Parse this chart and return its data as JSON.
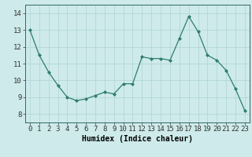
{
  "x": [
    0,
    1,
    2,
    3,
    4,
    5,
    6,
    7,
    8,
    9,
    10,
    11,
    12,
    13,
    14,
    15,
    16,
    17,
    18,
    19,
    20,
    21,
    22,
    23
  ],
  "y": [
    13.0,
    11.5,
    10.5,
    9.7,
    9.0,
    8.8,
    8.9,
    9.1,
    9.3,
    9.2,
    9.8,
    9.8,
    11.4,
    11.3,
    11.3,
    11.2,
    12.5,
    13.8,
    12.9,
    11.5,
    11.2,
    10.6,
    9.5,
    8.2
  ],
  "line_color": "#2e7d6e",
  "marker_color": "#2e7d6e",
  "bg_color": "#ceeaea",
  "grid_color": "#aed4d4",
  "xlabel": "Humidex (Indice chaleur)",
  "xlim": [
    -0.5,
    23.5
  ],
  "ylim": [
    7.5,
    14.5
  ],
  "yticks": [
    8,
    9,
    10,
    11,
    12,
    13,
    14
  ],
  "xticks": [
    0,
    1,
    2,
    3,
    4,
    5,
    6,
    7,
    8,
    9,
    10,
    11,
    12,
    13,
    14,
    15,
    16,
    17,
    18,
    19,
    20,
    21,
    22,
    23
  ],
  "xlabel_fontsize": 7,
  "tick_fontsize": 6.5
}
